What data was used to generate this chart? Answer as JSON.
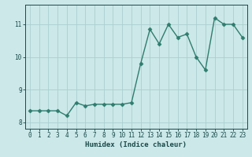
{
  "xlabel": "Humidex (Indice chaleur)",
  "ylabel": "",
  "x_values": [
    0,
    1,
    2,
    3,
    4,
    5,
    6,
    7,
    8,
    9,
    10,
    11,
    12,
    13,
    14,
    15,
    16,
    17,
    18,
    19,
    20,
    21,
    22,
    23
  ],
  "y_values": [
    8.35,
    8.35,
    8.35,
    8.35,
    8.2,
    8.6,
    8.5,
    8.55,
    8.55,
    8.55,
    8.55,
    8.6,
    9.8,
    10.85,
    10.4,
    11.0,
    10.6,
    10.7,
    10.0,
    9.6,
    11.2,
    11.0,
    11.0,
    10.6
  ],
  "line_color": "#2e7d6e",
  "marker": "D",
  "marker_size": 2.5,
  "line_width": 1.0,
  "background_color": "#cce8e8",
  "grid_color": "#aacfcf",
  "ylim": [
    7.8,
    11.6
  ],
  "xlim": [
    -0.5,
    23.5
  ],
  "yticks": [
    8,
    9,
    10,
    11
  ],
  "xticks": [
    0,
    1,
    2,
    3,
    4,
    5,
    6,
    7,
    8,
    9,
    10,
    11,
    12,
    13,
    14,
    15,
    16,
    17,
    18,
    19,
    20,
    21,
    22,
    23
  ],
  "tick_color": "#1a4a4a",
  "label_color": "#1a4a4a",
  "tick_fontsize": 5.5,
  "xlabel_fontsize": 6.5
}
